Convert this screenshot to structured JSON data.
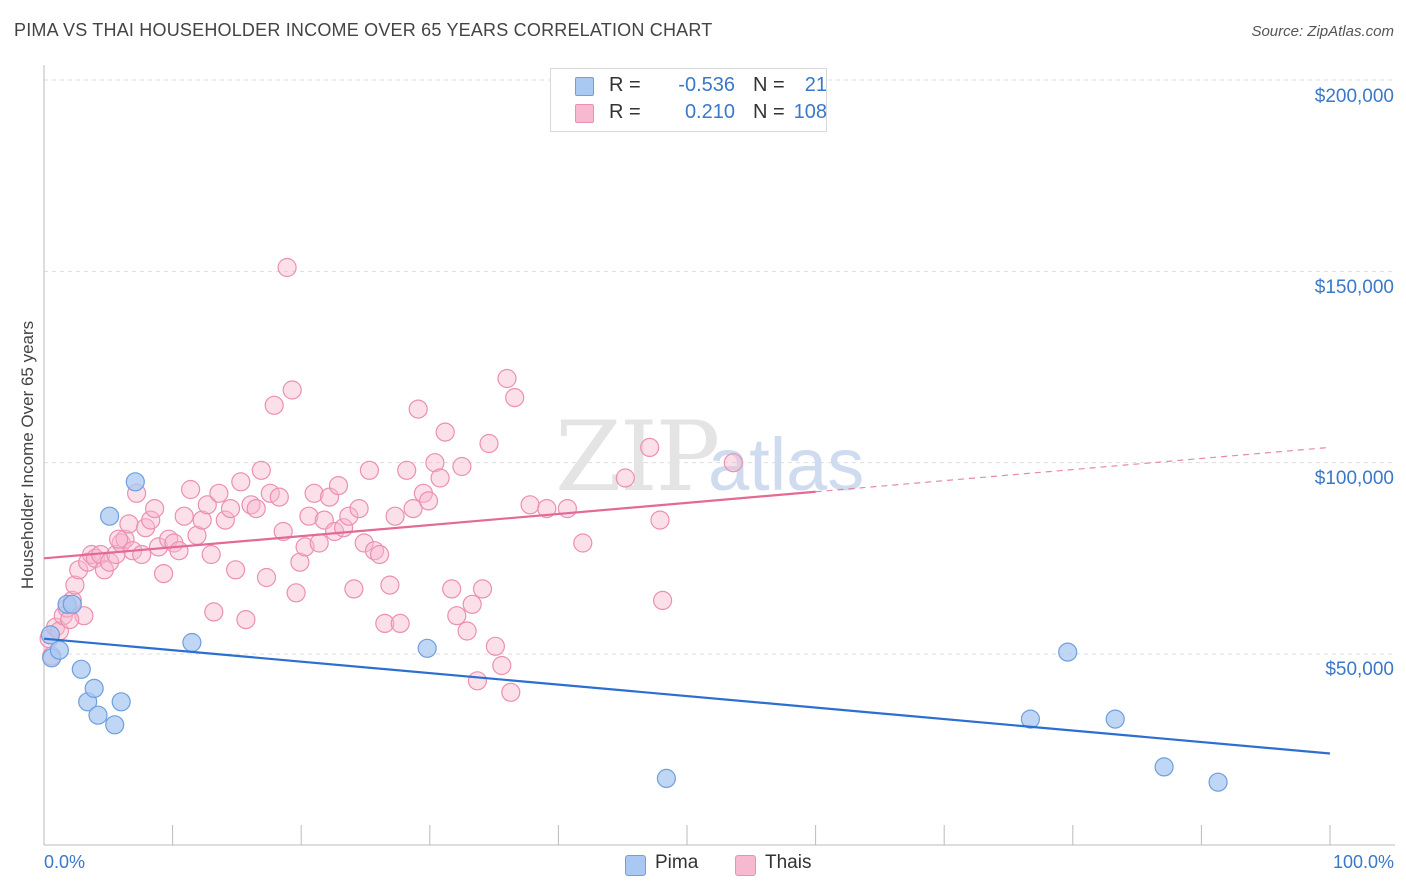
{
  "chart_data": {
    "type": "scatter",
    "title": "PIMA VS THAI HOUSEHOLDER INCOME OVER 65 YEARS CORRELATION CHART",
    "source": "Source: ZipAtlas.com",
    "xlabel": "",
    "ylabel": "Householder Income Over 65 years",
    "xlim": [
      0,
      100
    ],
    "ylim": [
      0,
      205000
    ],
    "x_tick_labels": [
      "0.0%",
      "100.0%"
    ],
    "y_ticks": [
      50000,
      100000,
      150000,
      200000
    ],
    "y_tick_labels": [
      "$50,000",
      "$100,000",
      "$150,000",
      "$200,000"
    ],
    "grid": true,
    "legend_position": "top-center",
    "colors": {
      "pima_fill": "#a9c8f2",
      "pima_stroke": "#6f9fdc",
      "pima_line": "#2c6fd1",
      "thais_fill": "#f7b9cf",
      "thais_stroke": "#ec8fb0",
      "thais_line": "#e36a96",
      "accent_text": "#3a78c9",
      "grid": "#dddddd"
    },
    "stats": [
      {
        "r_label": "R =",
        "r_value": "-0.536",
        "n_label": "N =",
        "n_value": "21"
      },
      {
        "r_label": "R =",
        "r_value": "0.210",
        "n_label": "N =",
        "n_value": "108"
      }
    ],
    "series": [
      {
        "name": "Pima",
        "trend": {
          "x0": 0,
          "y0": 54000,
          "x1": 100,
          "y1": 24000,
          "solid_until": 100
        },
        "points": [
          [
            0.5,
            55000
          ],
          [
            0.6,
            49000
          ],
          [
            1.2,
            51000
          ],
          [
            1.8,
            63000
          ],
          [
            2.2,
            63000
          ],
          [
            2.9,
            46000
          ],
          [
            3.4,
            37500
          ],
          [
            3.9,
            41000
          ],
          [
            4.2,
            34000
          ],
          [
            5.1,
            86000
          ],
          [
            5.5,
            31500
          ],
          [
            6.0,
            37500
          ],
          [
            7.1,
            95000
          ],
          [
            11.5,
            53000
          ],
          [
            29.8,
            51500
          ],
          [
            48.4,
            17500
          ],
          [
            76.7,
            33000
          ],
          [
            79.6,
            50500
          ],
          [
            83.3,
            33000
          ],
          [
            87.1,
            20500
          ],
          [
            91.3,
            16500
          ]
        ]
      },
      {
        "name": "Thais",
        "trend": {
          "x0": 0,
          "y0": 75000,
          "x1": 100,
          "y1": 104000,
          "solid_until": 60
        },
        "points": [
          [
            0.4,
            54000
          ],
          [
            0.6,
            49500
          ],
          [
            0.9,
            57000
          ],
          [
            1.2,
            56000
          ],
          [
            1.5,
            60000
          ],
          [
            1.8,
            62000
          ],
          [
            2.2,
            64000
          ],
          [
            2.4,
            68000
          ],
          [
            2.7,
            72000
          ],
          [
            3.1,
            60000
          ],
          [
            3.4,
            74000
          ],
          [
            3.7,
            76000
          ],
          [
            4.0,
            75000
          ],
          [
            4.4,
            76000
          ],
          [
            4.7,
            72000
          ],
          [
            5.1,
            74000
          ],
          [
            5.6,
            76000
          ],
          [
            6.0,
            79000
          ],
          [
            6.3,
            80000
          ],
          [
            6.6,
            84000
          ],
          [
            6.9,
            77000
          ],
          [
            7.2,
            92000
          ],
          [
            7.6,
            76000
          ],
          [
            7.9,
            83000
          ],
          [
            8.3,
            85000
          ],
          [
            8.6,
            88000
          ],
          [
            8.9,
            78000
          ],
          [
            9.3,
            71000
          ],
          [
            9.7,
            80000
          ],
          [
            10.1,
            79000
          ],
          [
            10.5,
            77000
          ],
          [
            10.9,
            86000
          ],
          [
            11.4,
            93000
          ],
          [
            11.9,
            81000
          ],
          [
            12.3,
            85000
          ],
          [
            12.7,
            89000
          ],
          [
            13.2,
            61000
          ],
          [
            13.6,
            92000
          ],
          [
            14.1,
            85000
          ],
          [
            14.5,
            88000
          ],
          [
            14.9,
            72000
          ],
          [
            15.3,
            95000
          ],
          [
            15.7,
            59000
          ],
          [
            16.1,
            89000
          ],
          [
            16.5,
            88000
          ],
          [
            16.9,
            98000
          ],
          [
            17.3,
            70000
          ],
          [
            17.6,
            92000
          ],
          [
            17.9,
            115000
          ],
          [
            18.3,
            91000
          ],
          [
            18.6,
            82000
          ],
          [
            18.9,
            151000
          ],
          [
            19.3,
            119000
          ],
          [
            19.6,
            66000
          ],
          [
            19.9,
            74000
          ],
          [
            20.3,
            78000
          ],
          [
            20.6,
            86000
          ],
          [
            21.0,
            92000
          ],
          [
            21.4,
            79000
          ],
          [
            21.8,
            85000
          ],
          [
            22.2,
            91000
          ],
          [
            22.6,
            82000
          ],
          [
            22.9,
            94000
          ],
          [
            23.3,
            83000
          ],
          [
            23.7,
            86000
          ],
          [
            24.1,
            67000
          ],
          [
            24.5,
            88000
          ],
          [
            24.9,
            79000
          ],
          [
            25.3,
            98000
          ],
          [
            25.7,
            77000
          ],
          [
            26.1,
            76000
          ],
          [
            26.5,
            58000
          ],
          [
            26.9,
            68000
          ],
          [
            27.3,
            86000
          ],
          [
            27.7,
            58000
          ],
          [
            28.2,
            98000
          ],
          [
            28.7,
            88000
          ],
          [
            29.1,
            114000
          ],
          [
            29.5,
            92000
          ],
          [
            29.9,
            90000
          ],
          [
            30.4,
            100000
          ],
          [
            30.8,
            96000
          ],
          [
            31.2,
            108000
          ],
          [
            31.7,
            67000
          ],
          [
            32.1,
            60000
          ],
          [
            32.5,
            99000
          ],
          [
            32.9,
            56000
          ],
          [
            33.3,
            63000
          ],
          [
            33.7,
            43000
          ],
          [
            34.1,
            67000
          ],
          [
            34.6,
            105000
          ],
          [
            35.1,
            52000
          ],
          [
            35.6,
            47000
          ],
          [
            36.0,
            122000
          ],
          [
            36.3,
            40000
          ],
          [
            36.6,
            117000
          ],
          [
            37.8,
            89000
          ],
          [
            39.1,
            88000
          ],
          [
            40.7,
            88000
          ],
          [
            41.9,
            79000
          ],
          [
            45.2,
            96000
          ],
          [
            47.1,
            104000
          ],
          [
            47.9,
            85000
          ],
          [
            48.1,
            64000
          ],
          [
            53.6,
            100000
          ],
          [
            2.0,
            59000
          ],
          [
            5.8,
            80000
          ],
          [
            13.0,
            76000
          ]
        ]
      }
    ]
  }
}
